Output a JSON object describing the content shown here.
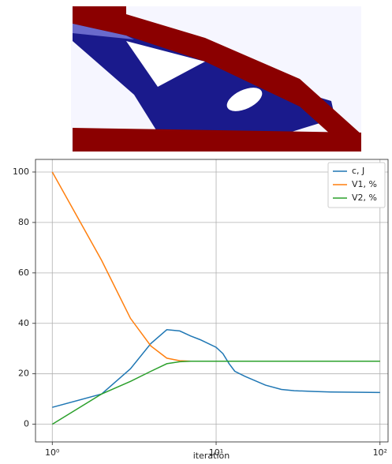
{
  "chart_data": {
    "type": "line",
    "x_label": "iteration",
    "x": [
      1,
      2,
      3,
      4,
      5,
      6,
      7,
      8,
      10,
      11,
      12,
      13,
      15,
      20,
      25,
      30,
      40,
      50,
      100
    ],
    "series": [
      {
        "name": "c, J",
        "color": "#1f77b4",
        "values": [
          6.7,
          12,
          22,
          32,
          37.5,
          37,
          35,
          33.5,
          30.5,
          28,
          24,
          21,
          19,
          15.5,
          13.8,
          13.3,
          13,
          12.8,
          12.6
        ]
      },
      {
        "name": "V1, %",
        "color": "#ff7f0e",
        "values": [
          100,
          65,
          42,
          31,
          26.2,
          25.2,
          25,
          25,
          25,
          25,
          25,
          25,
          25,
          25,
          25,
          25,
          25,
          25,
          25
        ]
      },
      {
        "name": "V2, %",
        "color": "#2ca02c",
        "values": [
          0,
          12,
          17,
          21,
          24,
          24.8,
          25,
          25,
          25,
          25,
          25,
          25,
          25,
          25,
          25,
          25,
          25,
          25,
          25
        ]
      }
    ],
    "xscale": "log",
    "xlim": [
      0.79,
      112
    ],
    "xticks": [
      {
        "value": 1,
        "label": "10⁰"
      },
      {
        "value": 10,
        "label": "10¹"
      },
      {
        "value": 100,
        "label": "10²"
      }
    ],
    "ylim": [
      -7,
      105
    ],
    "yticks": [
      0,
      20,
      40,
      60,
      80,
      100
    ],
    "grid": true,
    "legend": "upper-right"
  }
}
